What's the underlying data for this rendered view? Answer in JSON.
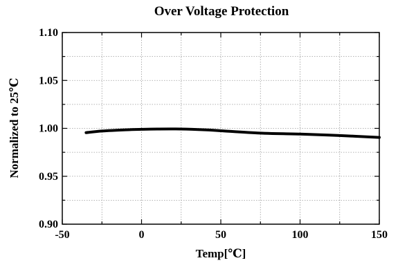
{
  "chart_data": {
    "type": "line",
    "title": "Over Voltage Protection",
    "xlabel": "Temp[℃]",
    "ylabel": "Normalized to 25℃",
    "xlim": [
      -50,
      150
    ],
    "ylim": [
      0.9,
      1.1
    ],
    "x_ticks": [
      -50,
      0,
      50,
      100,
      150
    ],
    "x_tick_labels": [
      "-50",
      "0",
      "50",
      "100",
      "150"
    ],
    "y_ticks": [
      0.9,
      0.95,
      1.0,
      1.05,
      1.1
    ],
    "y_tick_labels": [
      "0.90",
      "0.95",
      "1.00",
      "1.05",
      "1.10"
    ],
    "x_minor_step": 25,
    "y_minor_step": 0.025,
    "grid": true,
    "series": [
      {
        "color": "#000000",
        "x": [
          -35,
          -25,
          -10,
          0,
          10,
          25,
          40,
          50,
          75,
          100,
          125,
          150
        ],
        "y": [
          0.9955,
          0.9972,
          0.9985,
          0.999,
          0.9993,
          0.9993,
          0.9985,
          0.9975,
          0.995,
          0.994,
          0.9925,
          0.9905
        ]
      }
    ]
  }
}
